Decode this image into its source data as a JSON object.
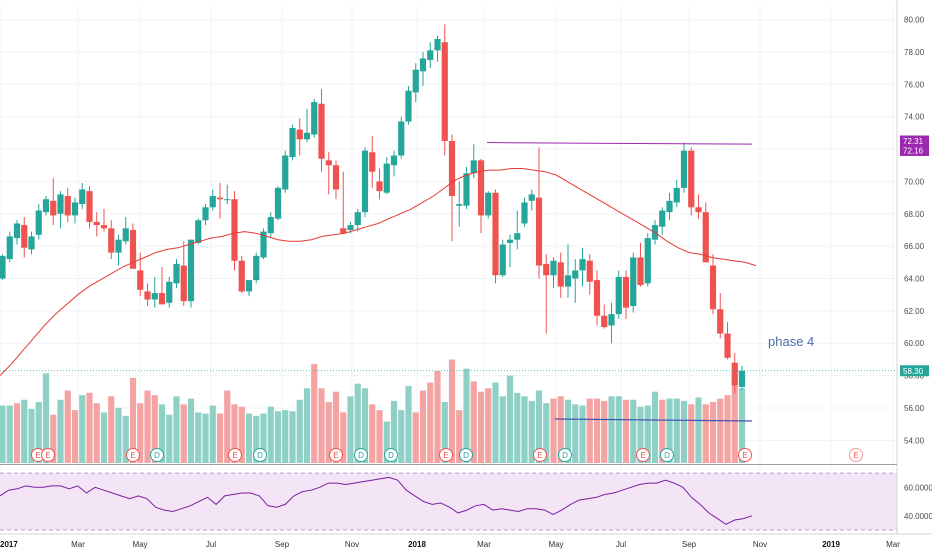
{
  "chart_data": {
    "type": "candlestick",
    "y_axis": {
      "min": 52.6,
      "max": 80.9,
      "ticks": [
        "54.00",
        "56.00",
        "58.00",
        "60.00",
        "62.00",
        "64.00",
        "66.00",
        "68.00",
        "70.00",
        "72.00",
        "74.00",
        "76.00",
        "78.00",
        "80.00"
      ]
    },
    "x_axis": {
      "ticks": [
        "2017",
        "Mar",
        "May",
        "Jul",
        "Sep",
        "Nov",
        "2018",
        "Mar",
        "May",
        "Jul",
        "Sep",
        "Nov",
        "2019",
        "Mar"
      ],
      "bold": [
        "2017",
        "2018",
        "2019"
      ]
    },
    "price_tags": [
      {
        "value": "72.31",
        "color": "#9c27b0"
      },
      {
        "value": "72.16",
        "color": "#9c27b0"
      },
      {
        "value": "58.30",
        "color": "#26a69a"
      }
    ],
    "annotation": {
      "text": "phase 4",
      "color": "#4a6fa5"
    },
    "resistance_line": {
      "start_price": 72.4,
      "end_price": 72.3,
      "color": "#9c27b0"
    },
    "volume_line": {
      "color": "#3f51b5"
    },
    "moving_average": {
      "color": "#e53935",
      "values": [
        58.0,
        58.7,
        59.5,
        60.3,
        61.1,
        61.8,
        62.4,
        63.0,
        63.5,
        63.9,
        64.3,
        64.7,
        65.0,
        65.3,
        65.6,
        65.8,
        65.9,
        66.1,
        66.3,
        66.5,
        66.6,
        66.8,
        66.9,
        66.8,
        66.6,
        66.4,
        66.3,
        66.3,
        66.4,
        66.6,
        66.7,
        66.8,
        67.0,
        67.2,
        67.4,
        67.7,
        68.0,
        68.3,
        68.7,
        69.1,
        69.6,
        70.1,
        70.4,
        70.6,
        70.7,
        70.7,
        70.8,
        70.8,
        70.7,
        70.6,
        70.4,
        70.0,
        69.6,
        69.2,
        68.8,
        68.4,
        68.0,
        67.6,
        67.2,
        66.8,
        66.3,
        65.9,
        65.6,
        65.5,
        65.3,
        65.2,
        65.1,
        65.0,
        64.8
      ]
    },
    "candles": [
      [
        64.0,
        65.5,
        63.9,
        65.4
      ],
      [
        65.2,
        66.9,
        65.0,
        66.6
      ],
      [
        66.5,
        67.6,
        66.1,
        67.4
      ],
      [
        67.3,
        67.8,
        65.3,
        65.9
      ],
      [
        65.8,
        66.9,
        65.5,
        66.6
      ],
      [
        66.7,
        68.6,
        66.4,
        68.2
      ],
      [
        68.1,
        69.1,
        67.9,
        68.9
      ],
      [
        68.8,
        70.2,
        67.3,
        67.9
      ],
      [
        68.0,
        69.4,
        67.1,
        69.2
      ],
      [
        69.1,
        69.6,
        67.5,
        67.9
      ],
      [
        67.9,
        69.0,
        67.4,
        68.7
      ],
      [
        68.6,
        69.9,
        68.3,
        69.5
      ],
      [
        69.4,
        69.7,
        67.1,
        67.5
      ],
      [
        67.5,
        68.1,
        66.6,
        67.3
      ],
      [
        67.3,
        68.3,
        66.9,
        67.1
      ],
      [
        67.1,
        67.6,
        65.2,
        65.6
      ],
      [
        65.6,
        66.7,
        64.8,
        66.4
      ],
      [
        66.3,
        67.8,
        66.1,
        67.1
      ],
      [
        67.0,
        67.4,
        64.8,
        64.6
      ],
      [
        64.5,
        65.6,
        62.9,
        63.3
      ],
      [
        63.2,
        63.7,
        62.3,
        62.7
      ],
      [
        62.7,
        64.1,
        62.2,
        63.1
      ],
      [
        63.1,
        64.7,
        62.4,
        62.4
      ],
      [
        62.5,
        64.1,
        62.2,
        63.8
      ],
      [
        63.7,
        65.2,
        63.4,
        64.9
      ],
      [
        64.8,
        66.3,
        62.3,
        62.6
      ],
      [
        62.6,
        66.4,
        62.2,
        66.4
      ],
      [
        66.2,
        67.7,
        66.1,
        67.6
      ],
      [
        67.6,
        68.6,
        67.3,
        68.4
      ],
      [
        68.4,
        69.5,
        68.2,
        69.1
      ],
      [
        69.0,
        69.9,
        67.7,
        68.9
      ],
      [
        68.9,
        69.8,
        68.6,
        68.9
      ],
      [
        68.9,
        69.4,
        64.5,
        65.1
      ],
      [
        65.1,
        65.4,
        63.1,
        63.2
      ],
      [
        63.2,
        63.9,
        62.9,
        63.9
      ],
      [
        63.9,
        65.6,
        63.7,
        65.4
      ],
      [
        65.3,
        67.1,
        65.2,
        66.9
      ],
      [
        66.8,
        68.1,
        66.5,
        67.8
      ],
      [
        67.7,
        69.7,
        67.6,
        69.6
      ],
      [
        69.5,
        71.9,
        69.3,
        71.6
      ],
      [
        71.5,
        73.5,
        71.3,
        73.3
      ],
      [
        73.2,
        73.9,
        71.6,
        72.6
      ],
      [
        72.6,
        74.5,
        72.4,
        73.0
      ],
      [
        72.9,
        75.1,
        72.7,
        74.9
      ],
      [
        74.8,
        75.7,
        70.6,
        71.4
      ],
      [
        71.3,
        71.8,
        69.2,
        71.0
      ],
      [
        71.0,
        71.3,
        68.9,
        69.5
      ],
      [
        67.1,
        70.6,
        66.9,
        66.8
      ],
      [
        67.0,
        67.5,
        66.8,
        67.3
      ],
      [
        67.3,
        68.3,
        66.9,
        68.1
      ],
      [
        68.1,
        72.1,
        67.8,
        71.9
      ],
      [
        71.8,
        72.8,
        69.6,
        70.6
      ],
      [
        70.0,
        70.8,
        68.9,
        69.4
      ],
      [
        69.3,
        71.5,
        69.2,
        71.1
      ],
      [
        71.0,
        71.9,
        70.3,
        71.6
      ],
      [
        71.6,
        74.0,
        71.4,
        73.7
      ],
      [
        73.7,
        75.9,
        73.5,
        75.6
      ],
      [
        75.5,
        77.3,
        74.9,
        76.9
      ],
      [
        76.8,
        78.0,
        75.9,
        77.6
      ],
      [
        77.5,
        78.6,
        77.0,
        78.1
      ],
      [
        78.1,
        79.0,
        77.4,
        78.8
      ],
      [
        78.6,
        79.7,
        71.6,
        72.5
      ],
      [
        72.5,
        72.9,
        66.3,
        69.1
      ],
      [
        68.5,
        70.0,
        67.2,
        68.6
      ],
      [
        68.5,
        70.9,
        68.3,
        70.5
      ],
      [
        70.5,
        72.3,
        70.2,
        71.3
      ],
      [
        71.3,
        71.4,
        66.8,
        67.9
      ],
      [
        67.9,
        69.4,
        67.7,
        69.3
      ],
      [
        69.3,
        69.5,
        63.7,
        64.2
      ],
      [
        64.2,
        66.4,
        64.1,
        66.1
      ],
      [
        66.2,
        66.7,
        64.7,
        66.4
      ],
      [
        66.4,
        68.2,
        65.8,
        66.8
      ],
      [
        67.4,
        69.0,
        67.2,
        68.7
      ],
      [
        68.8,
        69.5,
        68.2,
        69.2
      ],
      [
        69.0,
        72.1,
        64.0,
        64.8
      ],
      [
        64.9,
        65.5,
        60.6,
        64.2
      ],
      [
        64.2,
        65.3,
        63.4,
        65.1
      ],
      [
        65.0,
        65.6,
        62.8,
        63.5
      ],
      [
        63.5,
        66.1,
        62.8,
        64.2
      ],
      [
        64.0,
        65.2,
        62.5,
        64.5
      ],
      [
        64.5,
        65.9,
        63.5,
        65.2
      ],
      [
        65.1,
        65.5,
        63.0,
        63.8
      ],
      [
        63.9,
        64.5,
        61.1,
        61.7
      ],
      [
        61.7,
        62.4,
        60.9,
        61.0
      ],
      [
        61.1,
        62.5,
        60.0,
        61.8
      ],
      [
        61.8,
        64.5,
        61.5,
        64.1
      ],
      [
        64.1,
        64.5,
        61.5,
        62.2
      ],
      [
        62.3,
        65.6,
        61.9,
        65.3
      ],
      [
        65.3,
        66.2,
        63.5,
        63.6
      ],
      [
        63.7,
        66.8,
        63.5,
        66.5
      ],
      [
        66.4,
        67.6,
        66.1,
        67.3
      ],
      [
        67.2,
        68.4,
        66.7,
        68.2
      ],
      [
        68.1,
        69.3,
        67.6,
        68.8
      ],
      [
        68.7,
        70.1,
        68.4,
        69.6
      ],
      [
        69.6,
        72.4,
        69.3,
        71.9
      ],
      [
        71.9,
        72.1,
        67.9,
        68.4
      ],
      [
        68.4,
        69.2,
        67.7,
        68.1
      ],
      [
        68.1,
        68.7,
        65.0,
        65.0
      ],
      [
        64.8,
        65.5,
        61.8,
        62.1
      ],
      [
        62.1,
        63.1,
        60.3,
        60.6
      ],
      [
        60.6,
        61.3,
        59.0,
        59.1
      ],
      [
        58.8,
        59.4,
        56.9,
        57.4
      ],
      [
        57.3,
        58.6,
        57.1,
        58.3
      ]
    ],
    "volumes": [
      [
        5.0,
        "up"
      ],
      [
        5.0,
        "up"
      ],
      [
        5.2,
        "down"
      ],
      [
        5.5,
        "up"
      ],
      [
        4.7,
        "up"
      ],
      [
        5.3,
        "up"
      ],
      [
        7.8,
        "up"
      ],
      [
        4.2,
        "down"
      ],
      [
        5.5,
        "up"
      ],
      [
        6.3,
        "down"
      ],
      [
        4.6,
        "down"
      ],
      [
        5.9,
        "up"
      ],
      [
        6.1,
        "down"
      ],
      [
        5.2,
        "down"
      ],
      [
        4.4,
        "up"
      ],
      [
        5.8,
        "down"
      ],
      [
        4.8,
        "up"
      ],
      [
        4.1,
        "up"
      ],
      [
        7.4,
        "down"
      ],
      [
        5.2,
        "down"
      ],
      [
        6.3,
        "down"
      ],
      [
        5.9,
        "down"
      ],
      [
        5.1,
        "up"
      ],
      [
        4.2,
        "up"
      ],
      [
        5.8,
        "up"
      ],
      [
        5.1,
        "down"
      ],
      [
        5.6,
        "up"
      ],
      [
        4.4,
        "up"
      ],
      [
        4.3,
        "up"
      ],
      [
        5.0,
        "up"
      ],
      [
        4.3,
        "down"
      ],
      [
        6.3,
        "down"
      ],
      [
        5.1,
        "down"
      ],
      [
        4.9,
        "down"
      ],
      [
        4.3,
        "up"
      ],
      [
        4.1,
        "up"
      ],
      [
        4.3,
        "up"
      ],
      [
        4.9,
        "up"
      ],
      [
        4.5,
        "up"
      ],
      [
        4.6,
        "up"
      ],
      [
        4.5,
        "up"
      ],
      [
        5.5,
        "up"
      ],
      [
        6.5,
        "up"
      ],
      [
        8.6,
        "down"
      ],
      [
        6.5,
        "down"
      ],
      [
        5.3,
        "down"
      ],
      [
        6.2,
        "down"
      ],
      [
        4.4,
        "down"
      ],
      [
        5.8,
        "up"
      ],
      [
        6.9,
        "up"
      ],
      [
        6.5,
        "up"
      ],
      [
        5.1,
        "down"
      ],
      [
        4.6,
        "down"
      ],
      [
        3.6,
        "up"
      ],
      [
        5.4,
        "up"
      ],
      [
        4.6,
        "up"
      ],
      [
        6.7,
        "up"
      ],
      [
        4.4,
        "down"
      ],
      [
        6.3,
        "down"
      ],
      [
        7.0,
        "down"
      ],
      [
        8.0,
        "down"
      ],
      [
        5.3,
        "up"
      ],
      [
        9.0,
        "down"
      ],
      [
        4.6,
        "down"
      ],
      [
        8.2,
        "up"
      ],
      [
        7.1,
        "down"
      ],
      [
        6.2,
        "down"
      ],
      [
        6.5,
        "down"
      ],
      [
        7.0,
        "up"
      ],
      [
        5.8,
        "up"
      ],
      [
        7.6,
        "up"
      ],
      [
        6.1,
        "up"
      ],
      [
        5.8,
        "up"
      ],
      [
        5.4,
        "up"
      ],
      [
        6.3,
        "up"
      ],
      [
        5.2,
        "up"
      ],
      [
        5.6,
        "down"
      ],
      [
        5.8,
        "down"
      ],
      [
        5.5,
        "up"
      ],
      [
        5.1,
        "up"
      ],
      [
        5.0,
        "up"
      ],
      [
        5.6,
        "down"
      ],
      [
        5.6,
        "down"
      ],
      [
        5.4,
        "down"
      ],
      [
        5.8,
        "up"
      ],
      [
        5.8,
        "up"
      ],
      [
        5.5,
        "down"
      ],
      [
        5.5,
        "up"
      ],
      [
        4.9,
        "up"
      ],
      [
        5.0,
        "up"
      ],
      [
        6.2,
        "up"
      ],
      [
        5.5,
        "down"
      ],
      [
        5.6,
        "up"
      ],
      [
        5.6,
        "up"
      ],
      [
        5.4,
        "up"
      ],
      [
        5.1,
        "down"
      ],
      [
        5.7,
        "up"
      ],
      [
        5.1,
        "down"
      ],
      [
        5.3,
        "down"
      ],
      [
        5.6,
        "down"
      ],
      [
        5.9,
        "down"
      ],
      [
        7.0,
        "down"
      ],
      [
        6.5,
        "up"
      ]
    ],
    "earnings_markers": [
      "E",
      "E",
      "D",
      "E",
      "D",
      "E",
      "D",
      "E",
      "D",
      "E",
      "D",
      "E",
      "E",
      "D",
      "E",
      "E",
      "D",
      "E",
      "E"
    ],
    "rsi": {
      "ticks": [
        "40.0000",
        "60.0000"
      ],
      "values": [
        54,
        58,
        59,
        61,
        60,
        60,
        61,
        61,
        59,
        61,
        56,
        60,
        58,
        56,
        54,
        52,
        54,
        52,
        46,
        44,
        43,
        45,
        47,
        50,
        53,
        48,
        54,
        55,
        56,
        56,
        54,
        47,
        46,
        48,
        54,
        57,
        58,
        60,
        63,
        63,
        62,
        63,
        64,
        65,
        66,
        67,
        65,
        58,
        54,
        50,
        48,
        49,
        46,
        42,
        44,
        47,
        48,
        44,
        45,
        44,
        43,
        45,
        45,
        44,
        41,
        44,
        48,
        51,
        52,
        53,
        55,
        56,
        58,
        60,
        62,
        63,
        63,
        65,
        63,
        60,
        53,
        48,
        42,
        38,
        34,
        37,
        38,
        40
      ],
      "range": [
        30,
        75
      ]
    },
    "annotation_label": "phase 4"
  }
}
